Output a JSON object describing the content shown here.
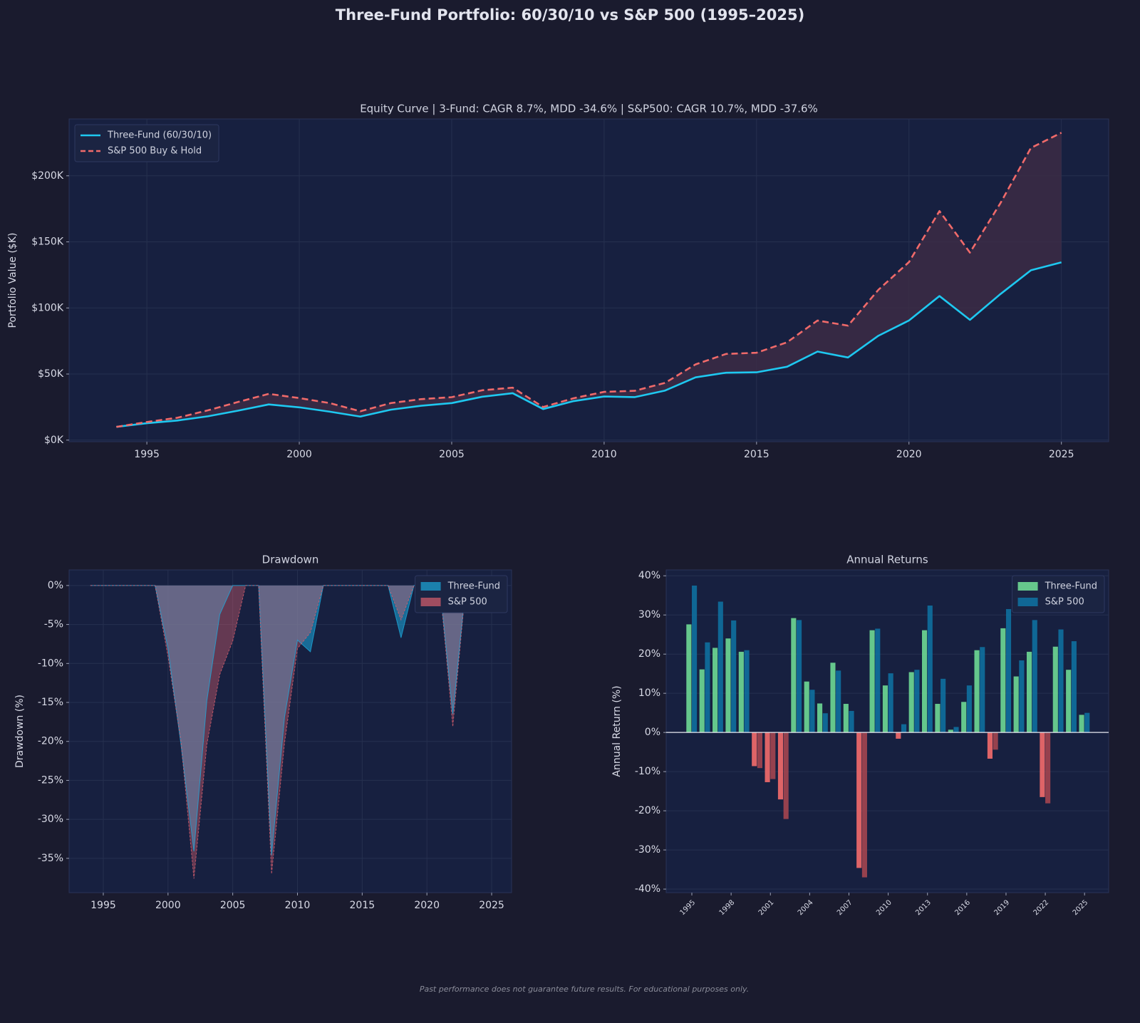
{
  "title": "Three-Fund Portfolio: 60/30/10 vs S&P 500 (1995–2025)",
  "footnote": "Past performance does not guarantee future results. For educational purposes only.",
  "chart_data": [
    {
      "type": "line",
      "title": "Equity Curve  |  3-Fund: CAGR 8.7%, MDD -34.6%  |  S&P500: CAGR 10.7%, MDD -37.6%",
      "y_label": "Portfolio Value ($K)",
      "x": [
        1994,
        1995,
        1996,
        1997,
        1998,
        1999,
        2000,
        2001,
        2002,
        2003,
        2004,
        2005,
        2006,
        2007,
        2008,
        2009,
        2010,
        2011,
        2012,
        2013,
        2014,
        2015,
        2016,
        2017,
        2018,
        2019,
        2020,
        2021,
        2022,
        2023,
        2024,
        2025
      ],
      "series": [
        {
          "name": "Three-Fund (60/30/10)",
          "color": "#1ec8f0",
          "style": "solid",
          "values": [
            10,
            12.8,
            14.8,
            18,
            22.3,
            27,
            24.8,
            21.5,
            17.8,
            23,
            26,
            28,
            32.8,
            35.5,
            23.5,
            29.5,
            33,
            32.5,
            37.5,
            47.5,
            51,
            51.3,
            55.5,
            67,
            62.5,
            79,
            90.5,
            109,
            91,
            110.5,
            128.5,
            134.5
          ]
        },
        {
          "name": "S&P 500 Buy & Hold",
          "color": "#f06a6a",
          "style": "dashed",
          "values": [
            10,
            13.7,
            16.9,
            22.5,
            28.9,
            35,
            31.8,
            28,
            21.8,
            28,
            31,
            32.5,
            37.7,
            39.7,
            25,
            31.7,
            36.5,
            37.3,
            43.3,
            57.3,
            65.2,
            66.1,
            74,
            90.5,
            86.6,
            113.8,
            134.7,
            173.3,
            141.9,
            179.3,
            221.1,
            232.6
          ]
        }
      ],
      "fill_between": true,
      "fill_color": "#3c2b45",
      "xlim": [
        1992.45,
        2026.55
      ],
      "xticks": [
        1995,
        2000,
        2005,
        2010,
        2015,
        2020,
        2025
      ],
      "ylim": [
        -1.2,
        243
      ],
      "yticks": [
        {
          "value": 0,
          "label": "$0K"
        },
        {
          "value": 50,
          "label": "$50K"
        },
        {
          "value": 100,
          "label": "$100K"
        },
        {
          "value": 150,
          "label": "$150K"
        },
        {
          "value": 200,
          "label": "$200K"
        }
      ],
      "grid": true,
      "legend": "upper left"
    },
    {
      "type": "area",
      "title": "Drawdown",
      "y_label": "Drawdown (%)",
      "x": [
        1994,
        1995,
        1996,
        1997,
        1998,
        1999,
        2000,
        2001,
        2002,
        2003,
        2004,
        2005,
        2006,
        2007,
        2008,
        2009,
        2010,
        2011,
        2012,
        2013,
        2014,
        2015,
        2016,
        2017,
        2018,
        2019,
        2020,
        2021,
        2022,
        2023,
        2024,
        2025
      ],
      "series": [
        {
          "name": "Three-Fund",
          "color": "#1ba9dc",
          "values": [
            0,
            0,
            0,
            0,
            0,
            0,
            -8.1,
            -20.4,
            -34.1,
            -14.8,
            -3.7,
            0,
            0,
            0,
            -34.6,
            -16.9,
            -7,
            -8.5,
            0,
            0,
            0,
            0,
            0,
            0,
            -6.7,
            0,
            0,
            0,
            -16.5,
            0,
            0,
            0
          ]
        },
        {
          "name": "S&P 500",
          "color": "#d9606e",
          "values": [
            0,
            0,
            0,
            0,
            0,
            0,
            -9.1,
            -20,
            -37.6,
            -20.4,
            -11.4,
            -7.1,
            0,
            0,
            -37,
            -20.2,
            -8.1,
            -6,
            0,
            0,
            0,
            0,
            0,
            0,
            -4.4,
            0,
            0,
            0,
            -18.1,
            0,
            0,
            0
          ]
        }
      ],
      "xlim": [
        1992.36,
        2026.54
      ],
      "xticks": [
        1995,
        2000,
        2005,
        2010,
        2015,
        2020,
        2025
      ],
      "ylim": [
        -39.4,
        2
      ],
      "yticks": [
        {
          "value": 0,
          "label": "0%"
        },
        {
          "value": -5,
          "label": "-5%"
        },
        {
          "value": -10,
          "label": "-10%"
        },
        {
          "value": -15,
          "label": "-15%"
        },
        {
          "value": -20,
          "label": "-20%"
        },
        {
          "value": -25,
          "label": "-25%"
        },
        {
          "value": -30,
          "label": "-30%"
        },
        {
          "value": -35,
          "label": "-35%"
        }
      ],
      "grid": true,
      "legend": "upper right"
    },
    {
      "type": "bar",
      "title": "Annual Returns",
      "y_label": "Annual Return (%)",
      "categories": [
        "1995",
        null,
        null,
        "1998",
        null,
        null,
        "2001",
        null,
        null,
        "2004",
        null,
        null,
        "2007",
        null,
        null,
        "2010",
        null,
        null,
        "2013",
        null,
        null,
        "2016",
        null,
        null,
        "2019",
        null,
        null,
        "2022",
        null,
        null,
        "2025"
      ],
      "series": [
        {
          "name": "Three-Fund",
          "color": "#6dd693",
          "negative_color": "#f06a6a",
          "values": [
            27.6,
            16.1,
            21.6,
            24,
            20.6,
            -8.6,
            -12.7,
            -17.1,
            29.2,
            13,
            7.4,
            17.8,
            7.3,
            -34.6,
            26.1,
            12,
            -1.6,
            15.4,
            26.1,
            7.3,
            0.7,
            7.8,
            21,
            -6.7,
            26.6,
            14.3,
            20.6,
            -16.5,
            21.9,
            16,
            4.5
          ]
        },
        {
          "name": "S&P 500",
          "color": "#0f6e9c",
          "negative_color": "#a2444f",
          "values": [
            37.5,
            23,
            33.4,
            28.6,
            21,
            -9.1,
            -11.9,
            -22.1,
            28.7,
            10.9,
            4.9,
            15.8,
            5.5,
            -37,
            26.5,
            15.1,
            2.1,
            16,
            32.4,
            13.7,
            1.4,
            12,
            21.8,
            -4.4,
            31.5,
            18.4,
            28.7,
            -18.1,
            26.3,
            23.3,
            5
          ]
        }
      ],
      "ylim": [
        -40.9,
        41.5
      ],
      "yticks": [
        {
          "value": 40,
          "label": "40%"
        },
        {
          "value": 30,
          "label": "30%"
        },
        {
          "value": 20,
          "label": "20%"
        },
        {
          "value": 10,
          "label": "10%"
        },
        {
          "value": 0,
          "label": "0%"
        },
        {
          "value": -10,
          "label": "-10%"
        },
        {
          "value": -20,
          "label": "-20%"
        },
        {
          "value": -30,
          "label": "-30%"
        },
        {
          "value": -40,
          "label": "-40%"
        }
      ],
      "grid": true,
      "zero_line": true,
      "legend": "upper right"
    }
  ]
}
